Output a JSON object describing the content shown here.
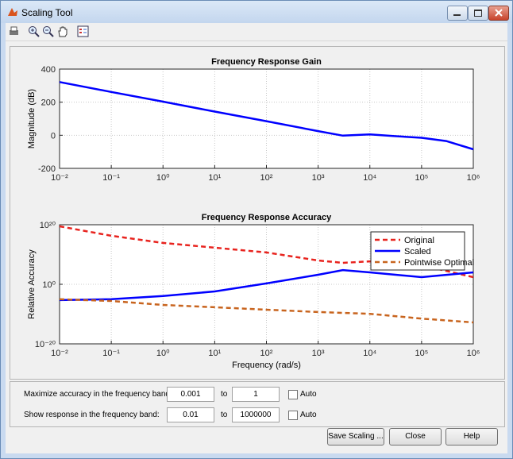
{
  "window": {
    "title": "Scaling Tool"
  },
  "chart_data": [
    {
      "type": "line",
      "title": "Frequency Response Gain",
      "ylabel": "Magnitude (dB)",
      "xlog": true,
      "ylog": false,
      "grid": true,
      "xlim": [
        0.01,
        1000000
      ],
      "ylim": [
        -200,
        400
      ],
      "xticks": [
        {
          "value": 0.01,
          "label": "10⁻²"
        },
        {
          "value": 0.1,
          "label": "10⁻¹"
        },
        {
          "value": 1,
          "label": "10⁰"
        },
        {
          "value": 10,
          "label": "10¹"
        },
        {
          "value": 100,
          "label": "10²"
        },
        {
          "value": 1000,
          "label": "10³"
        },
        {
          "value": 10000,
          "label": "10⁴"
        },
        {
          "value": 100000,
          "label": "10⁵"
        },
        {
          "value": 1000000,
          "label": "10⁶"
        }
      ],
      "yticks": [
        -200,
        0,
        200,
        400
      ],
      "x": [
        0.01,
        0.1,
        1,
        10,
        100,
        1000,
        3000,
        10000,
        30000,
        100000,
        300000,
        1000000
      ],
      "series": [
        {
          "color": "#0000ff",
          "linestyle": "-",
          "values": [
            322,
            262,
            203,
            143,
            85,
            25,
            -2,
            5,
            -5,
            -15,
            -35,
            -85
          ]
        }
      ]
    },
    {
      "type": "line",
      "title": "Frequency Response Accuracy",
      "ylabel": "Relative Accuracy",
      "xlabel": "Frequency (rad/s)",
      "xlog": true,
      "ylog": true,
      "grid": true,
      "legend": "northeast",
      "xlim": [
        0.01,
        1000000
      ],
      "ylim": [
        1e-20,
        1e+20
      ],
      "xticks": [
        {
          "value": 0.01,
          "label": "10⁻²"
        },
        {
          "value": 0.1,
          "label": "10⁻¹"
        },
        {
          "value": 1,
          "label": "10⁰"
        },
        {
          "value": 10,
          "label": "10¹"
        },
        {
          "value": 100,
          "label": "10²"
        },
        {
          "value": 1000,
          "label": "10³"
        },
        {
          "value": 10000,
          "label": "10⁴"
        },
        {
          "value": 100000,
          "label": "10⁵"
        },
        {
          "value": 1000000,
          "label": "10⁶"
        }
      ],
      "yticks": [
        {
          "value": 1e-20,
          "label": "10⁻²⁰"
        },
        {
          "value": 1,
          "label": "10⁰"
        },
        {
          "value": 1e+20,
          "label": "10²⁰"
        }
      ],
      "x": [
        0.01,
        0.1,
        1,
        10,
        100,
        1000,
        3000,
        10000,
        100000,
        1000000
      ],
      "series": [
        {
          "name": "Original",
          "color": "#e8231e",
          "linestyle": "--",
          "values": [
            3e+19,
            2e+16,
            80000000000000.0,
            2000000000000.0,
            50000000000.0,
            100000000.0,
            16000000.0,
            50000000.0,
            2500000.0,
            250
          ]
        },
        {
          "name": "Scaled",
          "color": "#0000ff",
          "linestyle": "-",
          "values": [
            5e-06,
            1e-05,
            0.00012,
            0.004,
            2,
            1600.0,
            60000.0,
            10000.0,
            250,
            10000.0
          ]
        },
        {
          "name": "Pointwise Optimal",
          "color": "#c8641e",
          "linestyle": "--",
          "values": [
            1e-05,
            2.5e-06,
            1.2e-07,
            2e-08,
            3e-09,
            5e-10,
            2.5e-10,
            1.2e-10,
            3e-12,
            1.6e-13
          ]
        }
      ]
    }
  ],
  "controls": {
    "rows": [
      {
        "label": "Maximize accuracy in the frequency band:",
        "from": "0.001",
        "to_label": "to",
        "to": "1",
        "auto": "Auto"
      },
      {
        "label": "Show response in the frequency band:",
        "from": "0.01",
        "to_label": "to",
        "to": "1000000",
        "auto": "Auto"
      }
    ],
    "buttons": [
      "Save Scaling ...",
      "Close",
      "Help"
    ]
  }
}
